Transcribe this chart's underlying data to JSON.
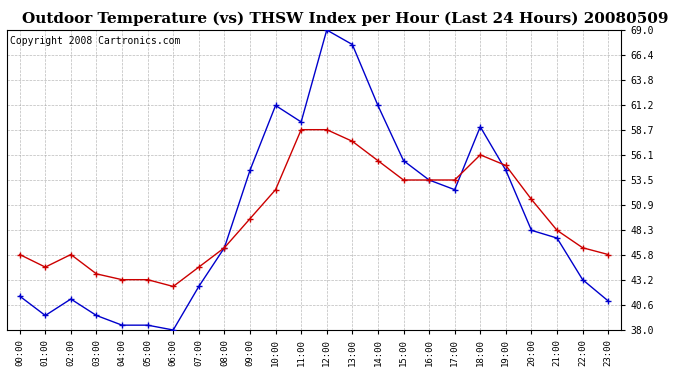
{
  "title": "Outdoor Temperature (vs) THSW Index per Hour (Last 24 Hours) 20080509",
  "copyright": "Copyright 2008 Cartronics.com",
  "hours": [
    "00:00",
    "01:00",
    "02:00",
    "03:00",
    "04:00",
    "05:00",
    "06:00",
    "07:00",
    "08:00",
    "09:00",
    "10:00",
    "11:00",
    "12:00",
    "13:00",
    "14:00",
    "15:00",
    "16:00",
    "17:00",
    "18:00",
    "19:00",
    "20:00",
    "21:00",
    "22:00",
    "23:00"
  ],
  "temp_red": [
    45.8,
    44.5,
    45.8,
    43.8,
    43.2,
    43.2,
    42.5,
    44.5,
    46.5,
    49.5,
    52.5,
    58.7,
    58.7,
    57.5,
    55.5,
    53.5,
    53.5,
    53.5,
    56.1,
    55.0,
    51.5,
    48.3,
    46.5,
    45.8
  ],
  "thsw_blue": [
    41.5,
    39.5,
    41.2,
    39.5,
    38.5,
    38.5,
    38.0,
    42.5,
    46.5,
    54.5,
    61.2,
    59.5,
    69.0,
    67.5,
    61.2,
    55.5,
    53.5,
    52.5,
    59.0,
    54.5,
    48.3,
    47.5,
    43.2,
    41.0
  ],
  "ylim": [
    38.0,
    69.0
  ],
  "yticks": [
    38.0,
    40.6,
    43.2,
    45.8,
    48.3,
    50.9,
    53.5,
    56.1,
    58.7,
    61.2,
    63.8,
    66.4,
    69.0
  ],
  "red_color": "#cc0000",
  "blue_color": "#0000cc",
  "grid_color": "#aaaaaa",
  "bg_color": "#ffffff",
  "title_fontsize": 11,
  "copyright_fontsize": 7
}
